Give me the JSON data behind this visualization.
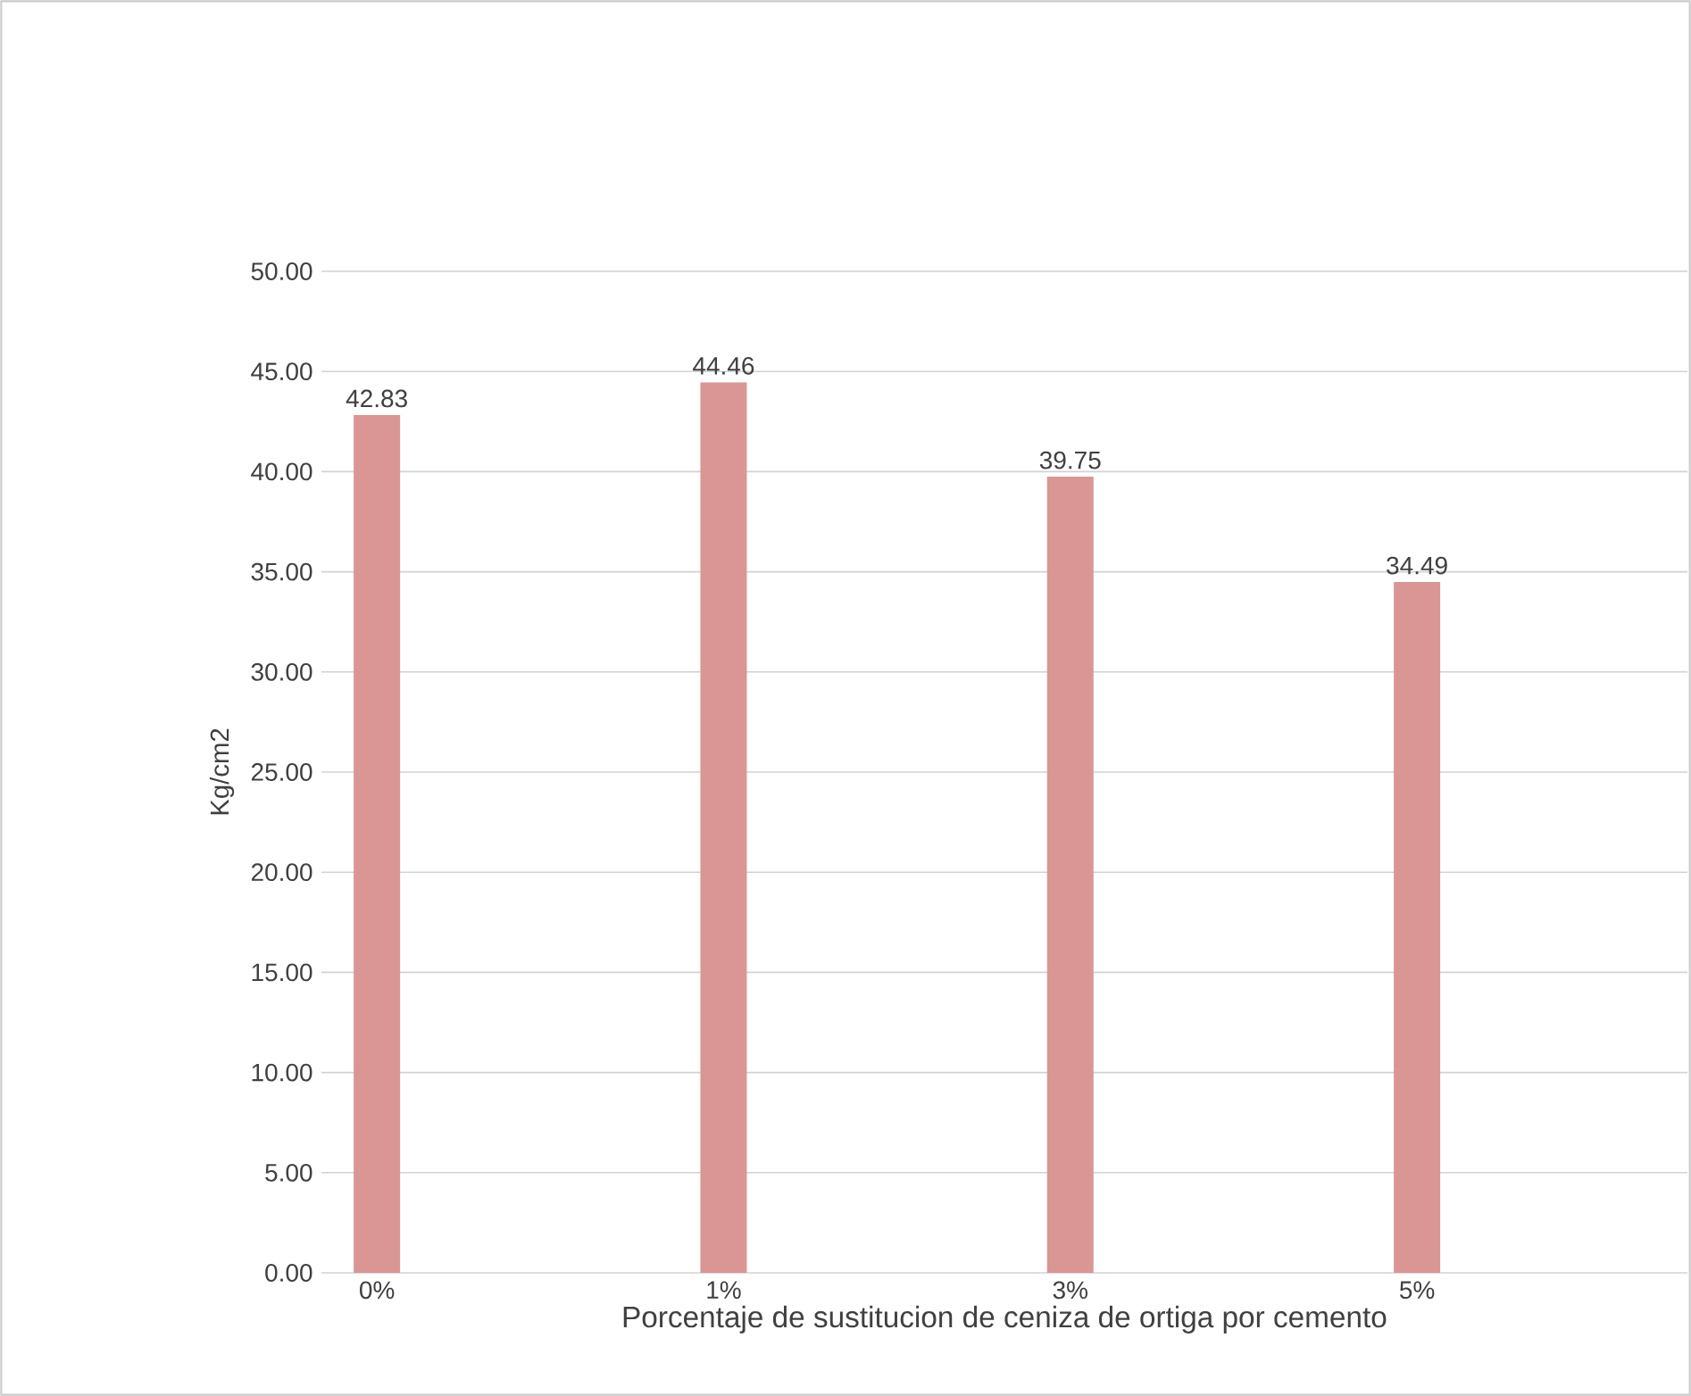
{
  "chart_data": {
    "type": "bar",
    "xlabel": "Porcentaje de sustitucion de ceniza de ortiga por cemento",
    "ylabel": "Kg/cm2",
    "categories": [
      "0%",
      "1%",
      "3%",
      "5%"
    ],
    "values": [
      42.83,
      44.46,
      39.75,
      34.49
    ],
    "color": "#d99694",
    "ylim": [
      0,
      50
    ],
    "yticks": [
      {
        "value": 0,
        "label": "0.00"
      },
      {
        "value": 5,
        "label": "5.00"
      },
      {
        "value": 10,
        "label": "10.00"
      },
      {
        "value": 15,
        "label": "15.00"
      },
      {
        "value": 20,
        "label": "20.00"
      },
      {
        "value": 25,
        "label": "25.00"
      },
      {
        "value": 30,
        "label": "30.00"
      },
      {
        "value": 35,
        "label": "35.00"
      },
      {
        "value": 40,
        "label": "40.00"
      },
      {
        "value": 45,
        "label": "45.00"
      },
      {
        "value": 50,
        "label": "50.00"
      }
    ],
    "data_labels": true,
    "grid": "y"
  }
}
